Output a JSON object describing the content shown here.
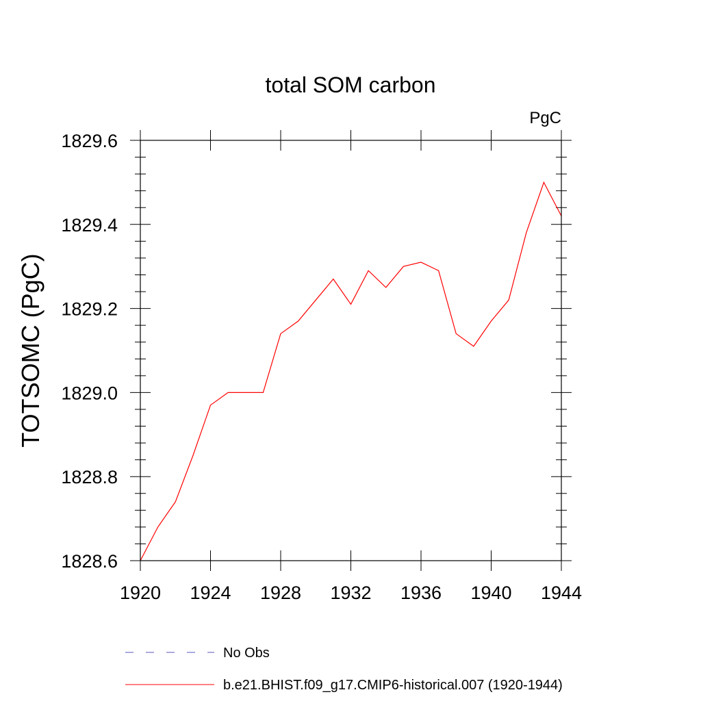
{
  "chart_data": {
    "type": "line",
    "title": "total SOM carbon",
    "units": "PgC",
    "xlabel": "",
    "ylabel": "TOTSOMC  (PgC)",
    "xlim": [
      1920,
      1944
    ],
    "ylim": [
      1828.6,
      1829.6
    ],
    "x_ticks": [
      1920,
      1924,
      1928,
      1932,
      1936,
      1940,
      1944
    ],
    "x_tick_labels": [
      "1920",
      "1924",
      "1928",
      "1932",
      "1936",
      "1940",
      "1944"
    ],
    "y_ticks": [
      1828.6,
      1828.8,
      1829.0,
      1829.2,
      1829.4,
      1829.6
    ],
    "y_tick_labels": [
      "1828.6",
      "1828.8",
      "1829.0",
      "1829.2",
      "1829.4",
      "1829.6"
    ],
    "grid": false,
    "legend_position": "bottom",
    "series": [
      {
        "name": "b.e21.BHIST.f09_g17.CMIP6-historical.007 (1920-1944)",
        "color": "#ff0000",
        "dash": "solid",
        "x": [
          1920,
          1921,
          1922,
          1923,
          1924,
          1925,
          1926,
          1927,
          1928,
          1929,
          1930,
          1931,
          1932,
          1933,
          1934,
          1935,
          1936,
          1937,
          1938,
          1939,
          1940,
          1941,
          1942,
          1943,
          1944
        ],
        "values": [
          1828.6,
          1828.68,
          1828.74,
          1828.85,
          1828.97,
          1829.0,
          1829.0,
          1829.0,
          1829.14,
          1829.17,
          1829.22,
          1829.27,
          1829.21,
          1829.29,
          1829.25,
          1829.3,
          1829.31,
          1829.29,
          1829.14,
          1829.11,
          1829.17,
          1829.22,
          1829.38,
          1829.5,
          1829.42
        ]
      }
    ],
    "legend": [
      {
        "label": "No Obs",
        "color": "#5555bb",
        "dash": "dashed"
      },
      {
        "label": "b.e21.BHIST.f09_g17.CMIP6-historical.007 (1920-1944)",
        "color": "#ff0000",
        "dash": "solid"
      }
    ]
  }
}
